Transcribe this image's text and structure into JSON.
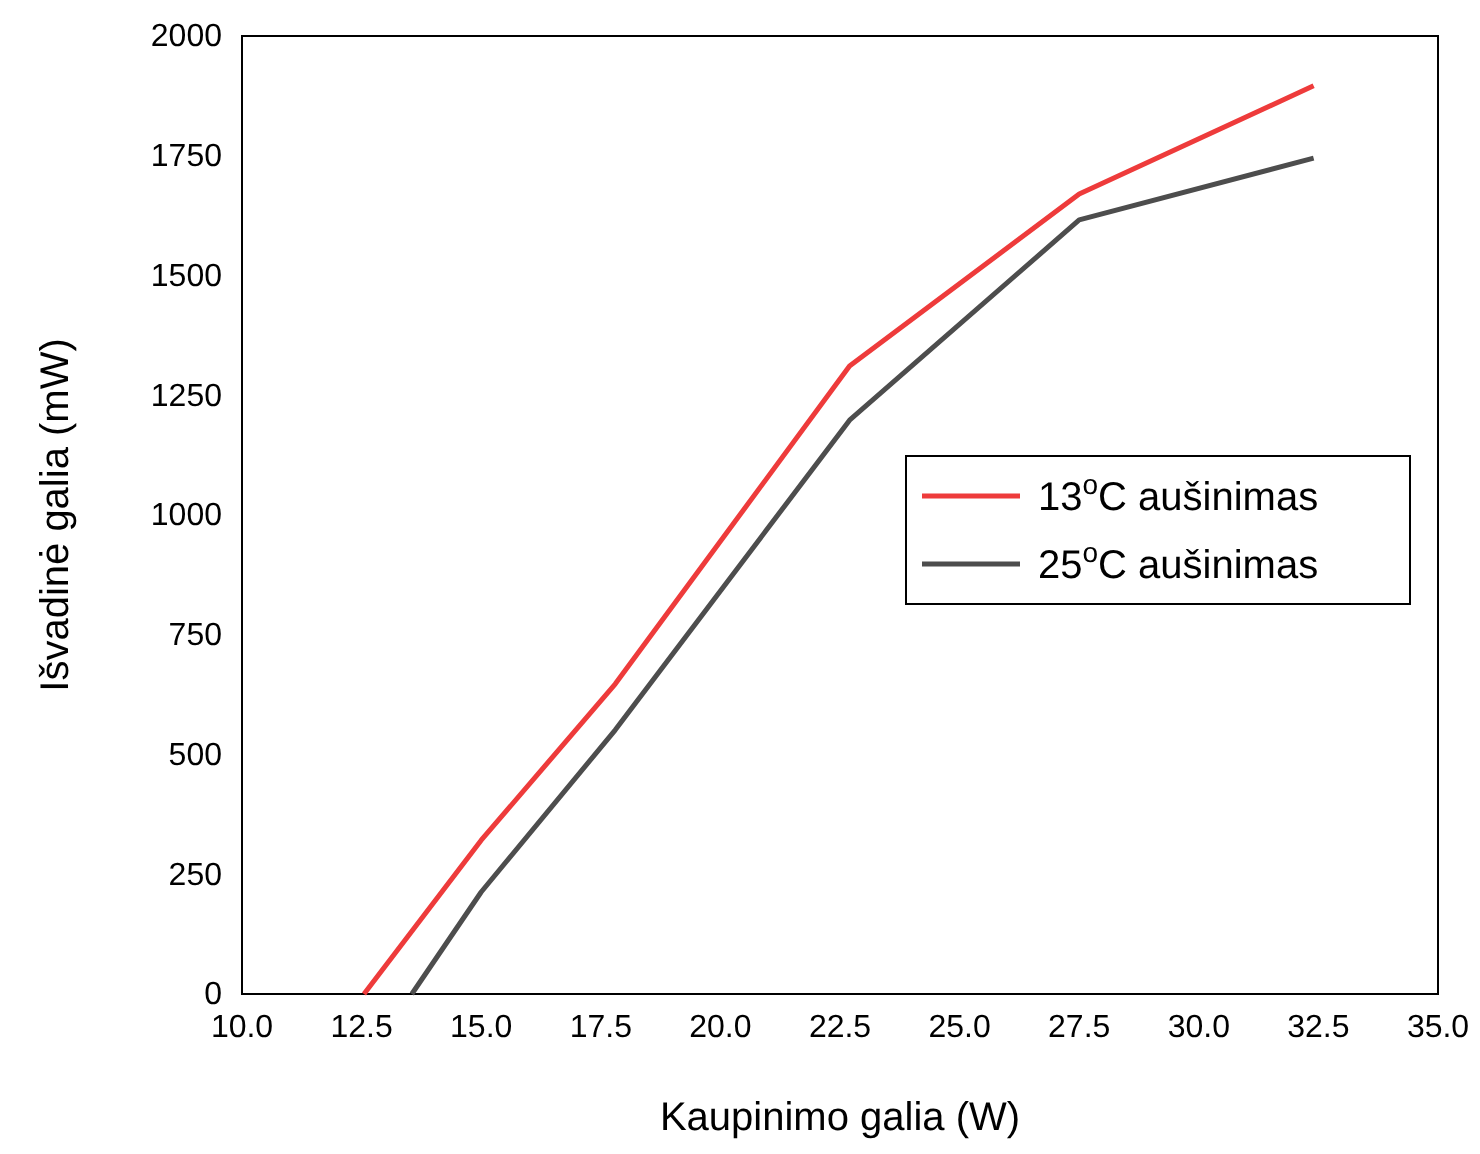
{
  "chart_data": {
    "type": "line",
    "xlabel": "Kaupinimo galia (W)",
    "ylabel": "Išvadinė galia (mW)",
    "xlim": [
      10,
      35
    ],
    "xticks": [
      {
        "value": 10,
        "label": "10.0"
      },
      {
        "value": 12.5,
        "label": "12.5"
      },
      {
        "value": 15,
        "label": "15.0"
      },
      {
        "value": 17.5,
        "label": "17.5"
      },
      {
        "value": 20,
        "label": "20.0"
      },
      {
        "value": 22.5,
        "label": "22.5"
      },
      {
        "value": 25,
        "label": "25.0"
      },
      {
        "value": 27.5,
        "label": "27.5"
      },
      {
        "value": 30,
        "label": "30.0"
      },
      {
        "value": 32.5,
        "label": "32.5"
      },
      {
        "value": 35,
        "label": "35.0"
      }
    ],
    "ylim": [
      0,
      2000
    ],
    "yticks": [
      0,
      250,
      500,
      750,
      1000,
      1250,
      1500,
      1750,
      2000
    ],
    "grid": false,
    "legend": "right",
    "marker": "none",
    "line_style": "solid",
    "series": [
      {
        "name": "13$^{o}$C aušinimas",
        "color": "#ee3b3b",
        "x": [
          12.55,
          15.0,
          17.8,
          22.7,
          27.5,
          32.4
        ],
        "values": [
          0,
          321,
          647,
          1311,
          1670,
          1896
        ]
      },
      {
        "name": "25$^{o}$C aušinimas",
        "color": "#4d4d4d",
        "x": [
          13.55,
          15.0,
          17.8,
          22.7,
          27.5,
          32.4
        ],
        "values": [
          0,
          213,
          551,
          1198,
          1616,
          1745
        ]
      }
    ]
  }
}
